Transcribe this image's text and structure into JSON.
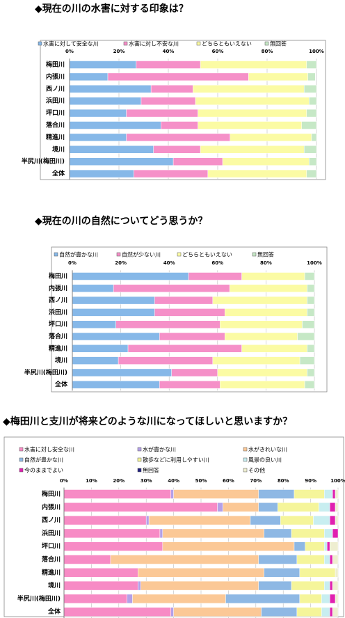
{
  "chart_data": [
    {
      "type": "stacked-bar-horizontal",
      "title": "◆現在の川の水害に対する印象は？",
      "categories": [
        "梅田川",
        "内張川",
        "西ノ川",
        "浜田川",
        "坪口川",
        "落合川",
        "精進川",
        "境川",
        "半尻川(梅田川)",
        "全体"
      ],
      "series": [
        {
          "name": "水害に対して安全な川",
          "color": "#86b8e8",
          "values": [
            27,
            15.5,
            33,
            29,
            23,
            37,
            23,
            34,
            42,
            26
          ]
        },
        {
          "name": "水害に対し不安な川",
          "color": "#f590c8",
          "values": [
            26,
            57,
            17,
            22,
            29,
            15,
            42,
            19,
            20,
            30
          ]
        },
        {
          "name": "どちらともいえない",
          "color": "#fbfba4",
          "values": [
            43,
            24,
            45,
            46,
            44,
            42,
            33,
            42,
            35,
            40
          ]
        },
        {
          "name": "無回答",
          "color": "#c6e8c6",
          "values": [
            4,
            3,
            5,
            3,
            4,
            6,
            2,
            5,
            3,
            4
          ]
        }
      ],
      "xlim": [
        0,
        100
      ],
      "xticks": [
        {
          "value": 0,
          "label": "0%"
        },
        {
          "value": 20,
          "label": "20%"
        },
        {
          "value": 40,
          "label": "40%"
        },
        {
          "value": 60,
          "label": "60%"
        },
        {
          "value": 80,
          "label": "80%"
        },
        {
          "value": 100,
          "label": "100%"
        }
      ],
      "grid": true
    },
    {
      "type": "stacked-bar-horizontal",
      "title": "◆現在の川の自然についてどう思うか？",
      "categories": [
        "梅田川",
        "内張川",
        "西ノ川",
        "浜田川",
        "坪口川",
        "落合川",
        "精進川",
        "境川",
        "半尻川(梅田川)",
        "全体"
      ],
      "series": [
        {
          "name": "自然が豊かな川",
          "color": "#86b8e8",
          "values": [
            48,
            17,
            34,
            34,
            18,
            36,
            23,
            19,
            41,
            36
          ]
        },
        {
          "name": "自然が少ない川",
          "color": "#f590c8",
          "values": [
            22,
            48,
            24,
            29,
            43,
            27,
            47,
            39,
            19,
            25
          ]
        },
        {
          "name": "どちらともいえない",
          "color": "#fbfba4",
          "values": [
            26,
            32,
            39,
            34,
            34,
            30,
            27,
            36,
            37,
            35
          ]
        },
        {
          "name": "無回答",
          "color": "#c6e8c6",
          "values": [
            4,
            3,
            3,
            3,
            5,
            7,
            3,
            6,
            3,
            4
          ]
        }
      ],
      "xlim": [
        0,
        100
      ],
      "xticks": [
        {
          "value": 0,
          "label": "0%"
        },
        {
          "value": 20,
          "label": "20%"
        },
        {
          "value": 40,
          "label": "40%"
        },
        {
          "value": 60,
          "label": "60%"
        },
        {
          "value": 80,
          "label": "80%"
        },
        {
          "value": 100,
          "label": "100%"
        }
      ],
      "grid": true
    },
    {
      "type": "stacked-bar-horizontal",
      "title": "◆梅田川と支川が将来どのような川になってほしいと思いますか？",
      "categories": [
        "梅田川",
        "内張川",
        "西ノ川",
        "浜田川",
        "坪口川",
        "落合川",
        "精進川",
        "境川",
        "半尻川(梅田川)",
        "全体"
      ],
      "series": [
        {
          "name": "水害に対し安全な川",
          "color": "#f78bc5",
          "values": [
            39,
            56,
            30,
            35,
            36,
            17,
            27,
            27,
            23,
            39
          ]
        },
        {
          "name": "水が豊かな川",
          "color": "#b4a0e8",
          "values": [
            1,
            2,
            1,
            1,
            0,
            0,
            0,
            1,
            2,
            1
          ]
        },
        {
          "name": "水がきれいな川",
          "color": "#fbc896",
          "values": [
            31,
            13,
            37,
            37,
            48,
            54,
            46,
            43,
            34,
            32
          ]
        },
        {
          "name": "自然が豊かな川",
          "color": "#8eb8e4",
          "values": [
            13,
            7,
            11,
            10,
            4,
            14,
            13,
            12,
            27,
            13
          ]
        },
        {
          "name": "散歩などに利用しやすい川",
          "color": "#f5f59a",
          "values": [
            11,
            15,
            12,
            12,
            7,
            10,
            13,
            12,
            8,
            9
          ]
        },
        {
          "name": "風景の良い川",
          "color": "#c8eef0",
          "values": [
            3,
            4,
            6,
            3,
            1,
            2,
            0,
            2,
            3,
            3
          ]
        },
        {
          "name": "今のままでよい",
          "color": "#e020b0",
          "values": [
            1,
            2,
            2,
            2,
            1,
            1,
            0,
            1,
            2,
            1
          ]
        },
        {
          "name": "無回答",
          "color": "#202080",
          "values": [
            0,
            0,
            0,
            0,
            0,
            0,
            0,
            0,
            0,
            0
          ]
        },
        {
          "name": "その他",
          "color": "#eeeed0",
          "values": [
            1,
            1,
            1,
            0,
            3,
            2,
            1,
            2,
            1,
            2
          ]
        }
      ],
      "xlim": [
        0,
        100
      ],
      "xticks": [
        {
          "value": 0,
          "label": "0%"
        },
        {
          "value": 10,
          "label": "10%"
        },
        {
          "value": 20,
          "label": "20%"
        },
        {
          "value": 30,
          "label": "30%"
        },
        {
          "value": 40,
          "label": "40%"
        },
        {
          "value": 50,
          "label": "50%"
        },
        {
          "value": 60,
          "label": "60%"
        },
        {
          "value": 70,
          "label": "70%"
        },
        {
          "value": 80,
          "label": "80%"
        },
        {
          "value": 90,
          "label": "90%"
        },
        {
          "value": 100,
          "label": "100%"
        }
      ],
      "grid": true
    }
  ]
}
